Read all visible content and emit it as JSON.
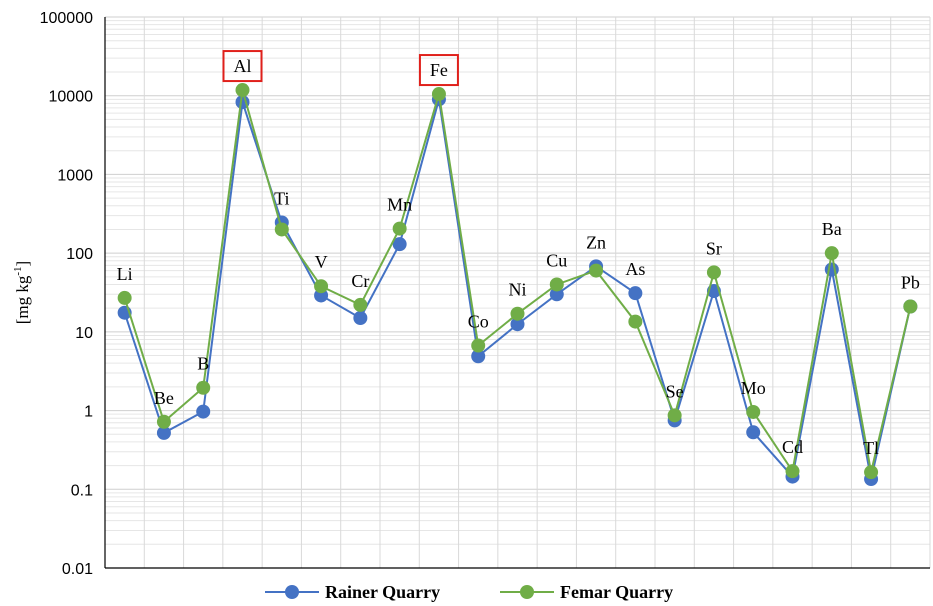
{
  "chart_data": {
    "type": "line",
    "y_scale": "log",
    "ylim": [
      0.01,
      100000
    ],
    "yticks": [
      "0.01",
      "0.1",
      "1",
      "10",
      "100",
      "1000",
      "10000",
      "100000"
    ],
    "ylabel_parts": [
      "[mg kg",
      "-1",
      "]"
    ],
    "grid": true,
    "legend_position": "bottom",
    "categories": [
      "Li",
      "Be",
      "B",
      "Al",
      "Ti",
      "V",
      "Cr",
      "Mn",
      "Fe",
      "Co",
      "Ni",
      "Cu",
      "Zn",
      "As",
      "Se",
      "Sr",
      "Mo",
      "Cd",
      "Ba",
      "Tl",
      "Pb"
    ],
    "highlighted": [
      "Al",
      "Fe"
    ],
    "highlight_color": "#e0201b",
    "series": [
      {
        "name": "Rainer Quarry",
        "color": "#4472c4",
        "values": [
          17.5,
          0.52,
          0.97,
          8300,
          245,
          29,
          15,
          130,
          9000,
          4.9,
          12.5,
          30,
          68,
          31,
          0.75,
          33,
          0.53,
          0.145,
          62,
          0.135,
          21
        ]
      },
      {
        "name": "Femar Quarry",
        "color": "#70ad47",
        "values": [
          27,
          0.72,
          1.95,
          11800,
          200,
          38,
          22,
          205,
          10500,
          6.7,
          17,
          40,
          60,
          13.5,
          0.87,
          57,
          0.96,
          0.17,
          100,
          0.165,
          21
        ]
      }
    ]
  }
}
